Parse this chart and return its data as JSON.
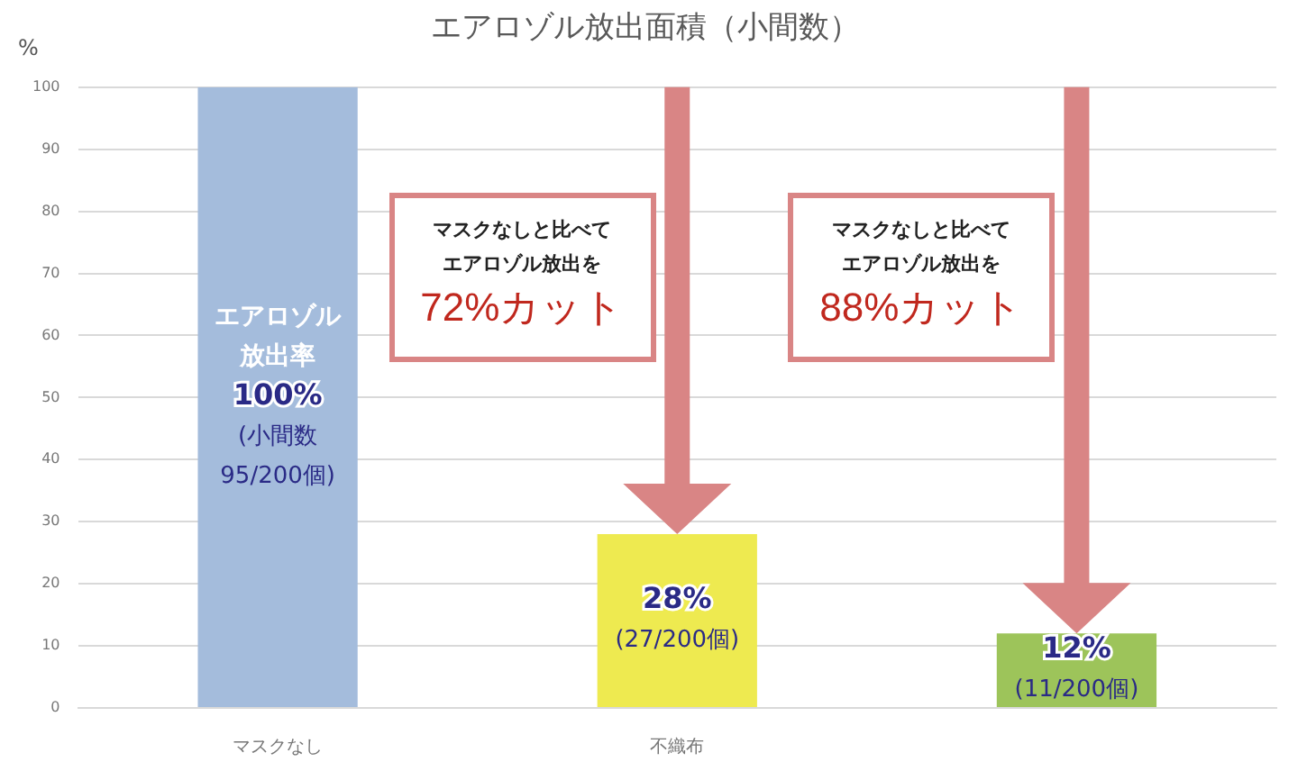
{
  "chart_data": {
    "type": "bar",
    "title": "エアロゾル放出面積（小間数）",
    "ylabel": "%",
    "categories": [
      "マスクなし",
      "不織布",
      null
    ],
    "values": [
      100,
      28,
      12
    ],
    "colors": [
      "#a4bcdc",
      "#eeea50",
      "#9dc45a"
    ],
    "value_labels": [
      "エアロゾル放出率\n100%\n(小間数 95/200個)",
      "28%\n(27/200個)",
      "12%\n(11/200個)"
    ],
    "annotations": [
      "マスクなしと比べてエアロゾル放出を",
      "72%カット",
      "マスクなしと比べてエアロゾル放出を",
      "88%カット"
    ],
    "ylim": [
      0,
      100
    ],
    "yticks": [
      0,
      10,
      20,
      30,
      40,
      50,
      60,
      70,
      80,
      90,
      100
    ],
    "grid": "y",
    "legend": false
  }
}
